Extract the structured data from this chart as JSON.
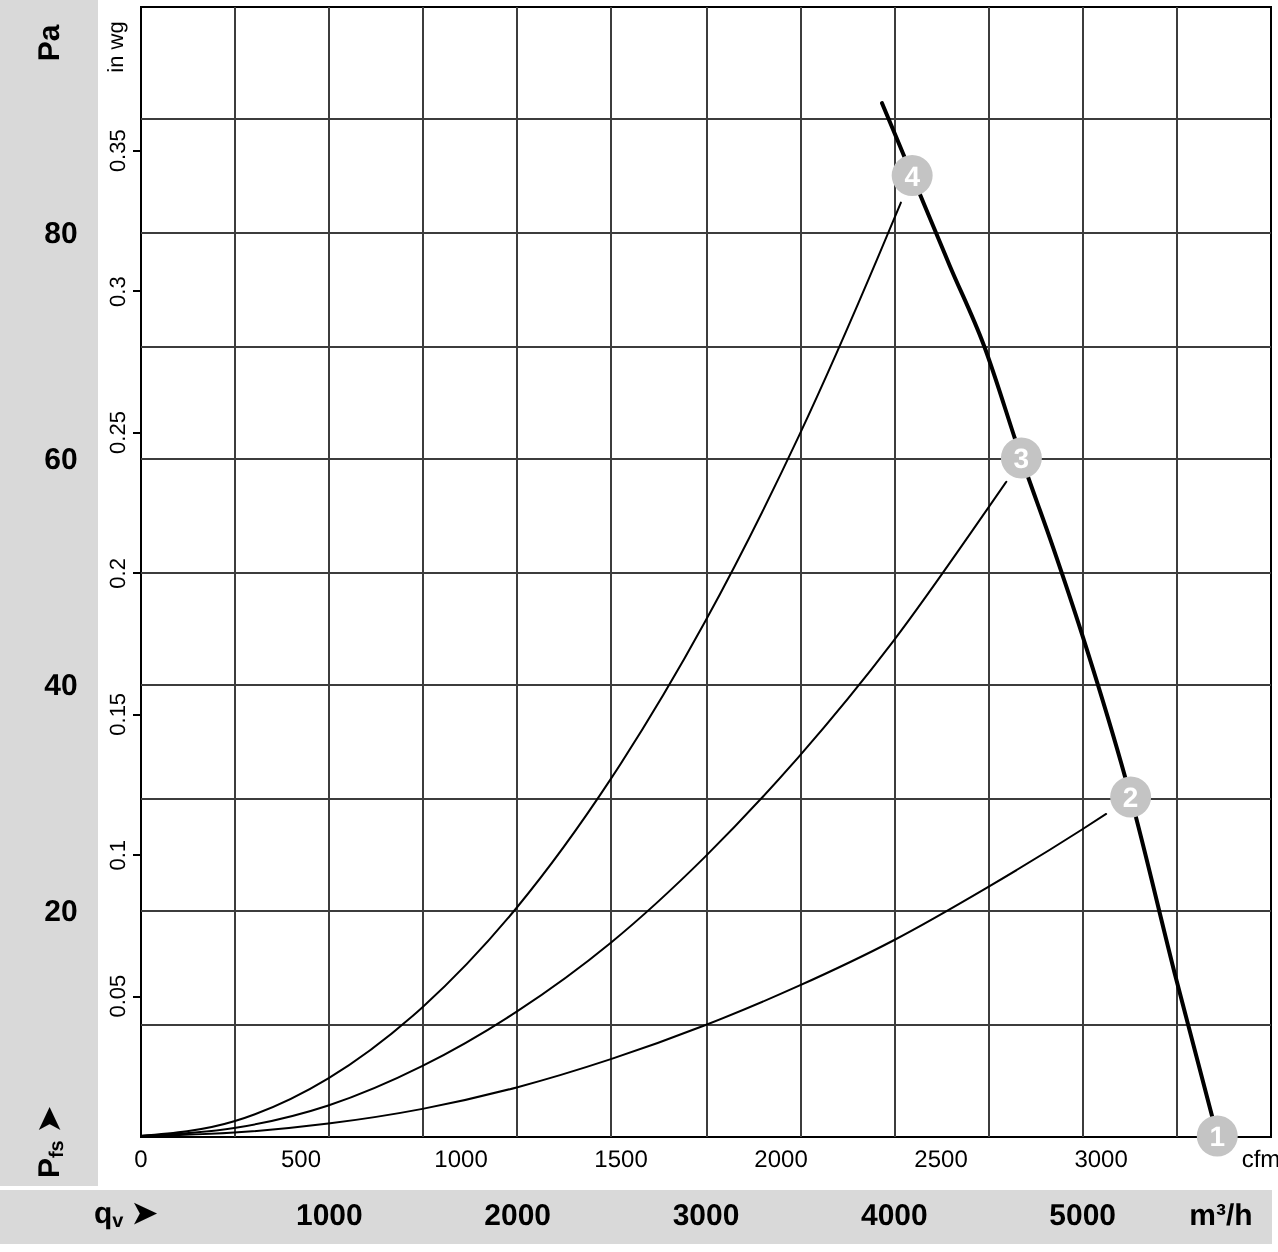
{
  "chart_data": {
    "type": "line",
    "series": [
      {
        "color": "#000000",
        "x": [
          3940,
          4100,
          4300,
          4480,
          4680,
          4850,
          5000,
          5260,
          5500,
          5720
        ],
        "values": [
          91.4,
          85,
          77,
          70,
          60,
          52,
          44.5,
          30,
          14,
          0
        ]
      },
      {
        "color": "#000000",
        "x": [
          0,
          500,
          1000,
          1500,
          2000,
          2500,
          3000,
          3500,
          4000,
          4500,
          5000,
          5130
        ],
        "values": [
          0,
          0.3,
          1.1,
          2.4,
          4.3,
          6.8,
          9.8,
          13.3,
          17.3,
          22,
          27.1,
          28.5
        ]
      },
      {
        "color": "#000000",
        "x": [
          0,
          500,
          1000,
          1500,
          2000,
          2500,
          3000,
          3500,
          4000,
          4500,
          4600
        ],
        "values": [
          0,
          0.7,
          2.7,
          6.2,
          11,
          17.1,
          24.7,
          33.6,
          43.8,
          55.5,
          57.9
        ]
      },
      {
        "color": "#000000",
        "x": [
          0,
          500,
          1000,
          1500,
          2000,
          2500,
          3000,
          3500,
          4000,
          4040
        ],
        "values": [
          0,
          1.3,
          5.1,
          11.4,
          20.2,
          31.6,
          45.5,
          62,
          81,
          82.6
        ]
      }
    ],
    "xlim": [
      0,
      6000
    ],
    "xticks": [
      {
        "value": 500,
        "label": null
      },
      1000,
      {
        "value": 1500,
        "label": null
      },
      2000,
      {
        "value": 2500,
        "label": null
      },
      3000,
      {
        "value": 3500,
        "label": null
      },
      4000,
      {
        "value": 4500,
        "label": null
      },
      5000,
      {
        "value": 5500,
        "label": null
      }
    ],
    "ylim": [
      0,
      100
    ],
    "yticks": [
      {
        "value": 10,
        "label": null
      },
      20,
      {
        "value": 30,
        "label": null
      },
      40,
      {
        "value": 50,
        "label": null
      },
      60,
      {
        "value": 70,
        "label": null
      },
      80,
      {
        "value": 90,
        "label": null
      }
    ],
    "x2lim": [
      0,
      3531
    ],
    "x2ticks": [
      0,
      500,
      1000,
      1500,
      2000,
      2500,
      3000
    ],
    "y2lim": [
      0,
      0.401
    ],
    "y2ticks": [
      0.05,
      0.1,
      0.15,
      0.2,
      0.25,
      0.3,
      0.35
    ],
    "xlabel": "m³/h",
    "ylabel": "Pa",
    "x2label": "cfm",
    "y2label": "in wg",
    "annotations": [
      {
        "text": "1",
        "x": 5720,
        "y": 0
      },
      {
        "text": "2",
        "x": 5260,
        "y": 30
      },
      {
        "text": "3",
        "x": 4680,
        "y": 60
      },
      {
        "text": "4",
        "x": 4100,
        "y": 85
      },
      "P$_{fs}$ ➤",
      "q$_{v}$ ➤"
    ],
    "grid": true
  }
}
